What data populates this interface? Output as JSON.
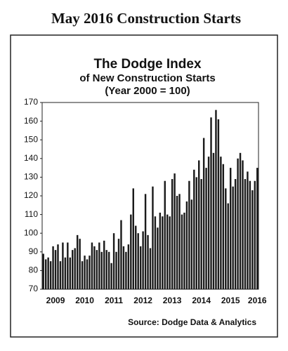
{
  "page_title": "May 2016 Construction Starts",
  "chart_data": {
    "type": "bar",
    "title": "The Dodge Index",
    "subtitle": [
      "of New Construction Starts",
      "(Year 2000 = 100)"
    ],
    "source": "Source:  Dodge Data & Analytics",
    "categories": [
      null,
      null,
      null,
      null,
      null,
      "2009",
      null,
      null,
      null,
      null,
      null,
      null,
      null,
      null,
      null,
      null,
      null,
      "2010",
      null,
      null,
      null,
      null,
      null,
      null,
      null,
      null,
      null,
      null,
      null,
      "2011",
      null,
      null,
      null,
      null,
      null,
      null,
      null,
      null,
      null,
      null,
      null,
      "2012",
      null,
      null,
      null,
      null,
      null,
      null,
      null,
      null,
      null,
      null,
      null,
      "2013",
      null,
      null,
      null,
      null,
      null,
      null,
      null,
      null,
      null,
      null,
      null,
      "2014",
      null,
      null,
      null,
      null,
      null,
      null,
      null,
      null,
      null,
      null,
      null,
      "2015",
      null,
      null,
      null,
      null,
      null,
      null,
      null,
      null,
      null,
      null,
      "2016"
    ],
    "values": [
      89,
      86,
      87,
      85,
      93,
      91,
      94,
      85,
      95,
      87,
      95,
      87,
      91,
      92,
      99,
      97,
      85,
      88,
      86,
      88,
      95,
      93,
      91,
      95,
      90,
      96,
      91,
      90,
      84,
      100,
      90,
      97,
      107,
      93,
      90,
      94,
      110,
      124,
      104,
      100,
      93,
      101,
      121,
      99,
      92,
      125,
      109,
      103,
      111,
      109,
      128,
      110,
      109,
      129,
      132,
      120,
      121,
      110,
      111,
      117,
      128,
      118,
      134,
      130,
      139,
      129,
      151,
      135,
      141,
      162,
      143,
      166,
      161,
      141,
      137,
      124,
      116,
      135,
      125,
      129,
      140,
      143,
      139,
      129,
      133,
      128,
      123,
      128,
      135
    ],
    "color": "#1a1a1a",
    "ylim": [
      70,
      170
    ],
    "yticks": [
      70,
      80,
      90,
      100,
      110,
      120,
      130,
      140,
      150,
      160,
      170
    ],
    "grid": false
  }
}
